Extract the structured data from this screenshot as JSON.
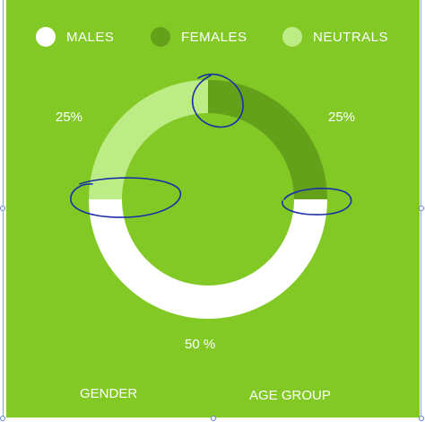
{
  "chart_data": {
    "type": "pie",
    "style": "donut",
    "categories": [
      "MALES",
      "FEMALES",
      "NEUTRALS"
    ],
    "values": [
      50,
      25,
      25
    ],
    "value_labels": [
      "50 %",
      "25%",
      "25%"
    ],
    "colors": [
      "#ffffff",
      "#65a01a",
      "#bdec86"
    ],
    "legend_placement": "top",
    "title": ""
  },
  "legend": {
    "items": [
      {
        "label": "MALES",
        "color": "#ffffff"
      },
      {
        "label": "FEMALES",
        "color": "#65a01a"
      },
      {
        "label": "NEUTRALS",
        "color": "#bdec86"
      }
    ]
  },
  "footer": {
    "left_label": "GENDER",
    "right_label": "AGE GROUP"
  },
  "colors": {
    "background": "#82c926",
    "annotation_ink": "#1a2ea8"
  }
}
